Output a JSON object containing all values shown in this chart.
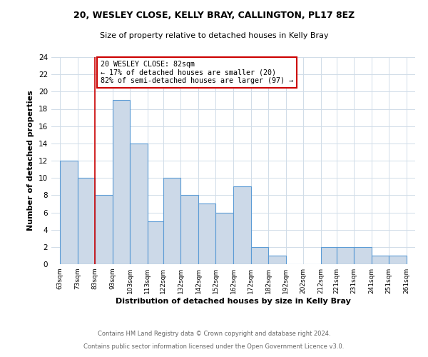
{
  "title_line1": "20, WESLEY CLOSE, KELLY BRAY, CALLINGTON, PL17 8EZ",
  "title_line2": "Size of property relative to detached houses in Kelly Bray",
  "xlabel": "Distribution of detached houses by size in Kelly Bray",
  "ylabel": "Number of detached properties",
  "bin_edges": [
    63,
    73,
    83,
    93,
    103,
    113,
    122,
    132,
    142,
    152,
    162,
    172,
    182,
    192,
    202,
    212,
    221,
    231,
    241,
    251,
    261
  ],
  "bar_heights": [
    12,
    10,
    8,
    19,
    14,
    5,
    10,
    8,
    7,
    6,
    9,
    2,
    1,
    0,
    0,
    2,
    2,
    2,
    1,
    1
  ],
  "bar_color": "#ccd9e8",
  "bar_edgecolor": "#5b9bd5",
  "vline_x": 83,
  "vline_color": "#cc0000",
  "annotation_title": "20 WESLEY CLOSE: 82sqm",
  "annotation_line2": "← 17% of detached houses are smaller (20)",
  "annotation_line3": "82% of semi-detached houses are larger (97) →",
  "annotation_box_edgecolor": "#cc0000",
  "ylim": [
    0,
    24
  ],
  "yticks": [
    0,
    2,
    4,
    6,
    8,
    10,
    12,
    14,
    16,
    18,
    20,
    22,
    24
  ],
  "bin_labels": [
    "63sqm",
    "73sqm",
    "83sqm",
    "93sqm",
    "103sqm",
    "113sqm",
    "122sqm",
    "132sqm",
    "142sqm",
    "152sqm",
    "162sqm",
    "172sqm",
    "182sqm",
    "192sqm",
    "202sqm",
    "212sqm",
    "221sqm",
    "231sqm",
    "241sqm",
    "251sqm",
    "261sqm"
  ],
  "footnote1": "Contains HM Land Registry data © Crown copyright and database right 2024.",
  "footnote2": "Contains public sector information licensed under the Open Government Licence v3.0.",
  "grid_color": "#d0dce8",
  "background_color": "#ffffff"
}
